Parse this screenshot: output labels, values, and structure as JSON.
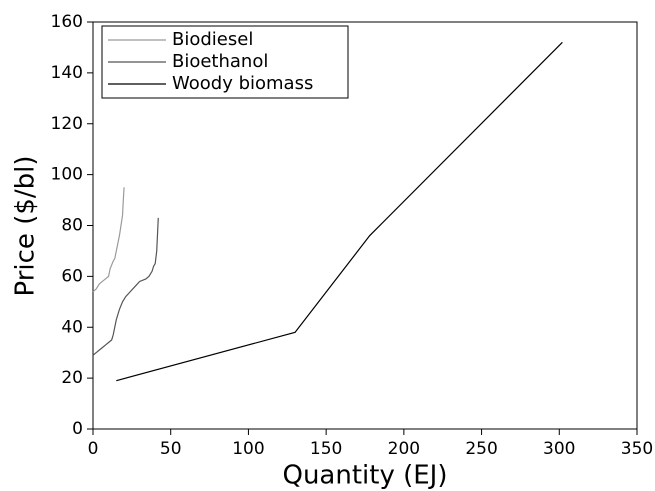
{
  "chart_data": {
    "type": "line",
    "xlabel": "Quantity (EJ)",
    "ylabel": "Price ($/bl)",
    "xlim": [
      0,
      350
    ],
    "ylim": [
      0,
      160
    ],
    "xticks": [
      0,
      50,
      100,
      150,
      200,
      250,
      300,
      350
    ],
    "yticks": [
      0,
      20,
      40,
      60,
      80,
      100,
      120,
      140,
      160
    ],
    "legend": "upper left",
    "series": [
      {
        "name": "Biodiesel",
        "color": "#9a9a9a",
        "x": [
          0,
          2,
          4,
          6,
          8,
          10,
          11,
          13,
          14,
          15,
          16,
          17,
          18,
          19,
          19.5,
          20
        ],
        "values": [
          54,
          55,
          57,
          58,
          59,
          60,
          63,
          66,
          67,
          70,
          73,
          76,
          80,
          84,
          90,
          95
        ]
      },
      {
        "name": "Bioethanol",
        "color": "#555555",
        "x": [
          0,
          2,
          4,
          6,
          8,
          10,
          12,
          13,
          14,
          15,
          17,
          19,
          21,
          24,
          27,
          30,
          34,
          36,
          38,
          39,
          40,
          41,
          42
        ],
        "values": [
          29,
          30,
          31,
          32,
          33,
          34,
          35,
          37,
          40,
          43,
          47,
          50,
          52,
          54,
          56,
          58,
          59,
          60,
          62,
          64,
          65,
          70,
          83
        ]
      },
      {
        "name": "Woody biomass",
        "color": "#000000",
        "x": [
          15,
          130,
          178,
          302
        ],
        "values": [
          19,
          38,
          76,
          152
        ]
      }
    ]
  }
}
